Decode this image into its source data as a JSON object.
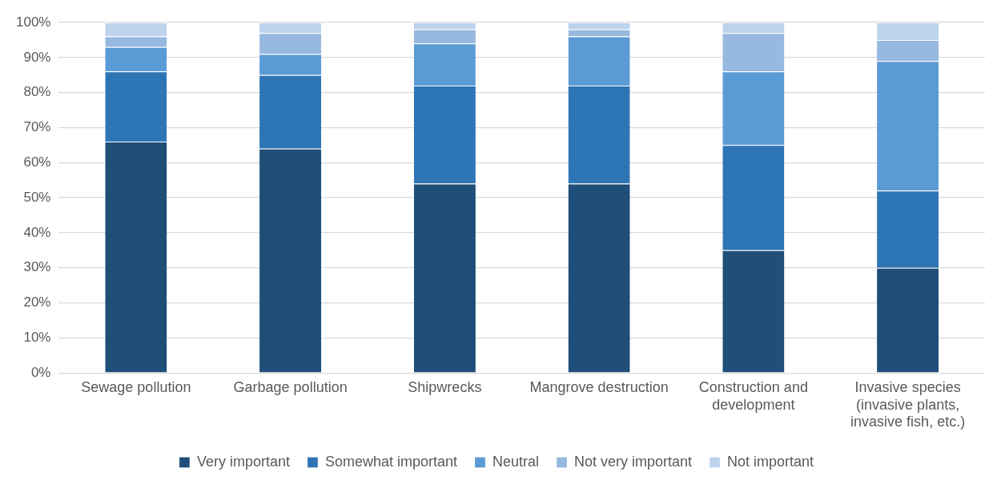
{
  "chart_data": {
    "type": "bar",
    "stacked": true,
    "categories": [
      "Sewage pollution",
      "Garbage pollution",
      "Shipwrecks",
      "Mangrove destruction",
      "Construction and development",
      "Invasive species (invasive plants, invasive fish, etc.)"
    ],
    "series": [
      {
        "name": "Very important",
        "color": "#1f4e79",
        "values": [
          66,
          64,
          54,
          54,
          35,
          30
        ]
      },
      {
        "name": "Somewhat important",
        "color": "#2e75b6",
        "values": [
          20,
          21,
          28,
          28,
          30,
          22
        ]
      },
      {
        "name": "Neutral",
        "color": "#5b9bd5",
        "values": [
          7,
          6,
          12,
          14,
          21,
          37
        ]
      },
      {
        "name": "Not very important",
        "color": "#97b9e0",
        "values": [
          3,
          6,
          4,
          2,
          11,
          6
        ]
      },
      {
        "name": "Not important",
        "color": "#bdd2ec",
        "values": [
          4,
          3,
          2,
          2,
          3,
          5
        ]
      }
    ],
    "ylim": [
      0,
      100
    ],
    "yticks": [
      {
        "value": 0,
        "label": "0%"
      },
      {
        "value": 10,
        "label": "10%"
      },
      {
        "value": 20,
        "label": "20%"
      },
      {
        "value": 30,
        "label": "30%"
      },
      {
        "value": 40,
        "label": "40%"
      },
      {
        "value": 50,
        "label": "50%"
      },
      {
        "value": 60,
        "label": "60%"
      },
      {
        "value": 70,
        "label": "70%"
      },
      {
        "value": 80,
        "label": "80%"
      },
      {
        "value": 90,
        "label": "90%"
      },
      {
        "value": 100,
        "label": "100%"
      }
    ],
    "grid": "y",
    "legend": "bottom"
  }
}
